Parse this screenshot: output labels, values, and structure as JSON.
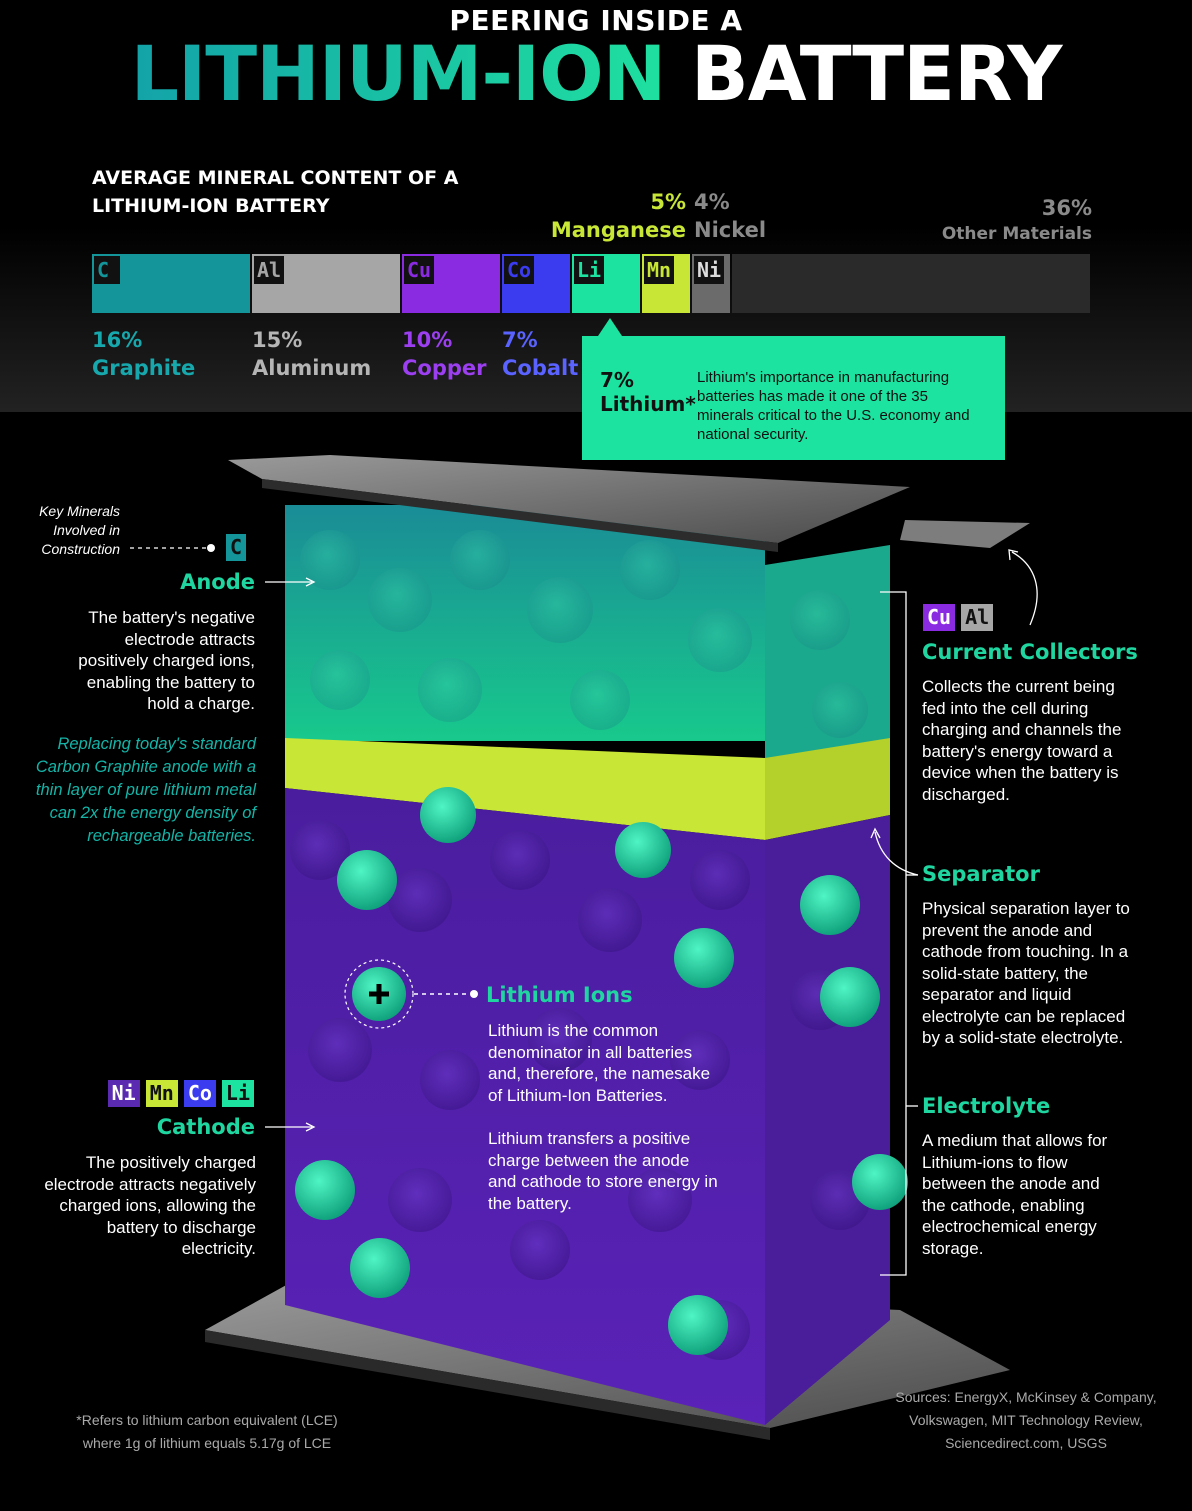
{
  "header": {
    "kicker": "PEERING INSIDE A",
    "title_part1": "LITHIUM-ION",
    "title_part2": "BATTERY"
  },
  "subtitle": "AVERAGE MINERAL CONTENT OF A LITHIUM-ION BATTERY",
  "minerals": [
    {
      "symbol": "C",
      "percent": "16%",
      "name": "Graphite",
      "value": 16,
      "color": "#13959a"
    },
    {
      "symbol": "Al",
      "percent": "15%",
      "name": "Aluminum",
      "value": 15,
      "color": "#a6a6a6"
    },
    {
      "symbol": "Cu",
      "percent": "10%",
      "name": "Copper",
      "value": 10,
      "color": "#8a2be2"
    },
    {
      "symbol": "Co",
      "percent": "7%",
      "name": "Cobalt",
      "value": 7,
      "color": "#3b3bf0"
    },
    {
      "symbol": "Li",
      "percent": "7%",
      "name": "Lithium*",
      "value": 7,
      "color": "#1de3a0"
    },
    {
      "symbol": "Mn",
      "percent": "5%",
      "name": "Manganese",
      "value": 5,
      "color": "#c8e636"
    },
    {
      "symbol": "Ni",
      "percent": "4%",
      "name": "Nickel",
      "value": 4,
      "color": "#6b6b6b"
    },
    {
      "symbol": "",
      "percent": "36%",
      "name": "Other Materials",
      "value": 36,
      "color": "#2a2a2a"
    }
  ],
  "lithium_callout": {
    "percent": "7%",
    "name": "Lithium*",
    "text": "Lithium's importance in manufacturing batteries has made it one of the 35 minerals critical to the U.S. economy and national security."
  },
  "key_minerals_label": "Key Minerals Involved in Construction",
  "anode": {
    "chip": "C",
    "heading": "Anode",
    "text": "The battery's negative electrode attracts positively charged ions, enabling the battery to hold a charge.",
    "note": "Replacing today's standard Carbon Graphite anode with a thin layer of pure lithium metal can 2x the energy density of rechargeable batteries."
  },
  "cathode": {
    "chips": [
      "Ni",
      "Mn",
      "Co",
      "Li"
    ],
    "heading": "Cathode",
    "text": "The positively charged electrode attracts negatively charged ions, allowing the battery to discharge electricity."
  },
  "collectors": {
    "chips": [
      "Cu",
      "Al"
    ],
    "heading": "Current Collectors",
    "text": "Collects the current being fed into the cell during charging and channels the battery's energy toward a device when the battery is discharged."
  },
  "separator": {
    "heading": "Separator",
    "text": "Physical separation layer to prevent the anode and cathode from touching. In a solid-state battery, the separator and liquid electrolyte can be replaced by a solid-state electrolyte."
  },
  "electrolyte": {
    "heading": "Electrolyte",
    "text": "A medium that allows for Lithium-ions to flow between the anode and the cathode, enabling electrochemical energy storage."
  },
  "lithium_ions": {
    "heading": "Lithium Ions",
    "text1": "Lithium is the common denominator in all batteries and, therefore, the namesake of Lithium-Ion Batteries.",
    "text2": "Lithium transfers a positive charge between the anode and cathode to store energy in the battery.",
    "icon": "plus-icon"
  },
  "footnote": "*Refers to lithium carbon equivalent (LCE) where 1g of lithium equals 5.17g of LCE",
  "sources": "Sources: EnergyX, McKinsey & Company, Volkswagen, MIT Technology Review, Sciencedirect.com, USGS"
}
